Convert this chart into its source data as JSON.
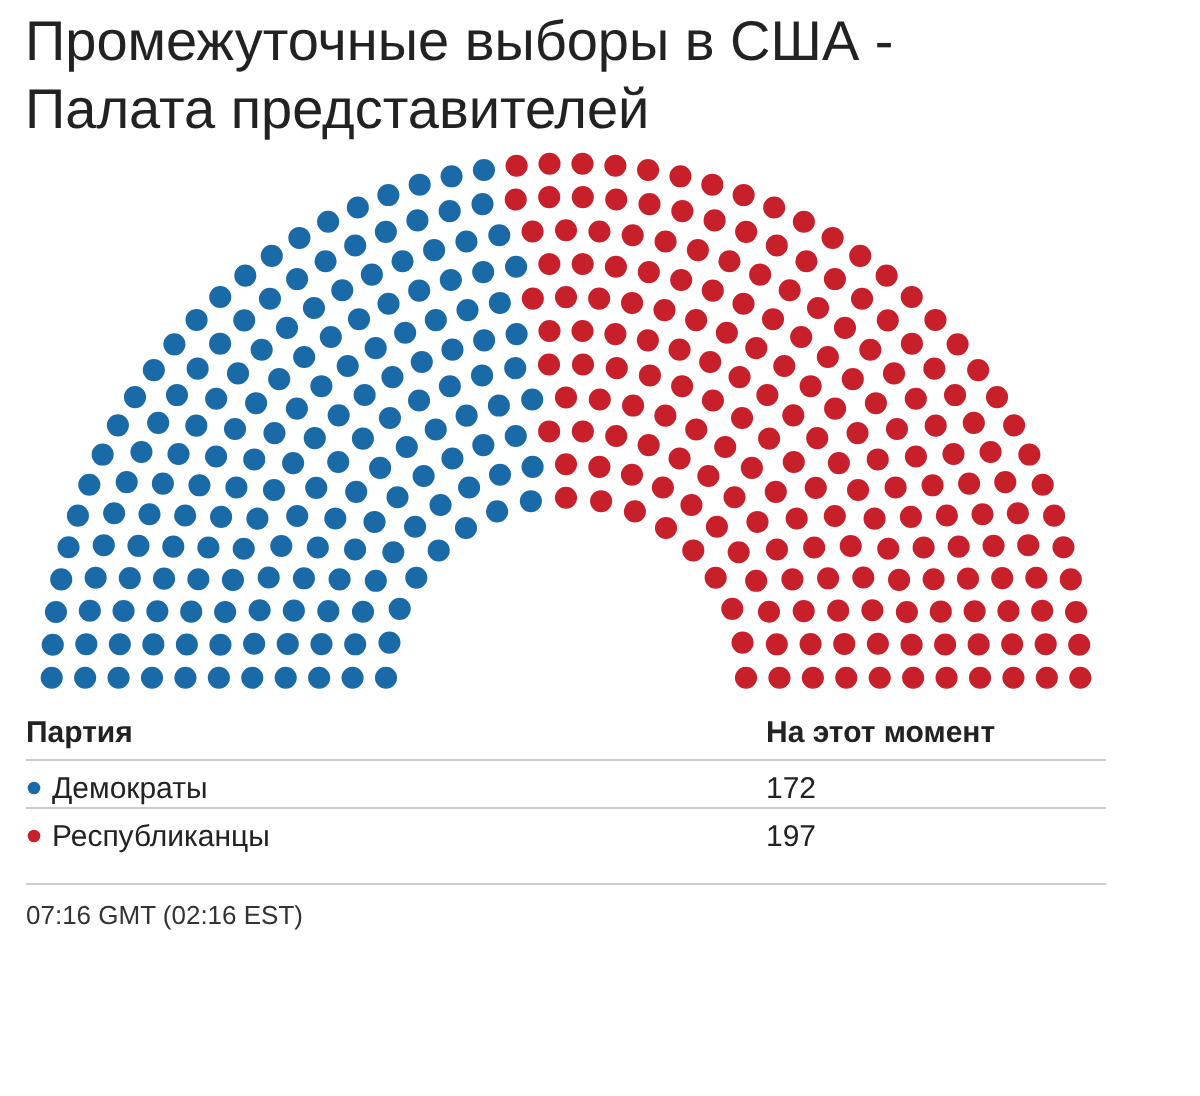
{
  "chart_data": {
    "type": "other",
    "title": "Промежуточные выборы в США - Палата представителей",
    "legend_title": "Партия",
    "categories": [
      "Демократы",
      "Республиканцы"
    ],
    "values": [
      172,
      197
    ],
    "colors": [
      "#1a6aa8",
      "#c8202b"
    ],
    "data_labels": true,
    "annotations": [
      "На этот момент",
      "07:16 GMT (02:16 EST)"
    ]
  }
}
